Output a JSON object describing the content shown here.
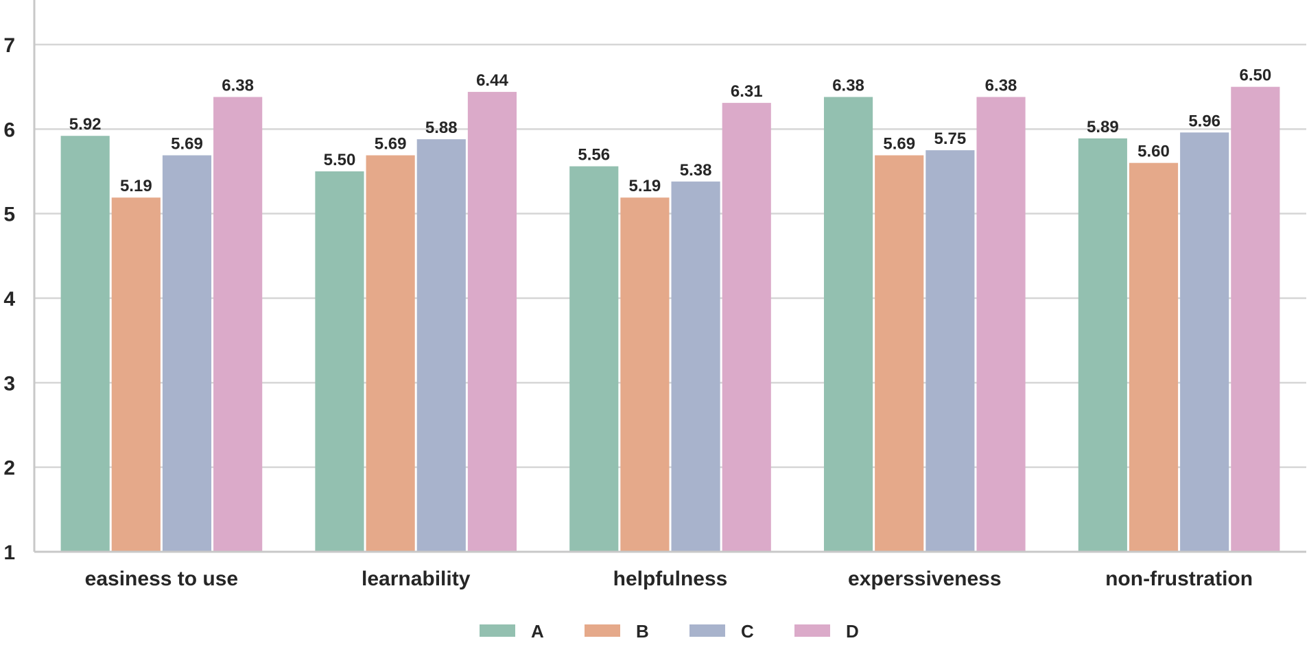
{
  "chart_data": {
    "type": "bar",
    "title": "",
    "xlabel": "",
    "ylabel": "",
    "ylim": [
      1,
      7.3
    ],
    "yticks": [
      1,
      2,
      3,
      4,
      5,
      6,
      7
    ],
    "grid": true,
    "legend_position": "bottom-center",
    "categories": [
      "easiness to use",
      "learnability",
      "helpfulness",
      "experssiveness",
      "non-frustration"
    ],
    "series": [
      {
        "name": "A",
        "color": "#93c0b0",
        "values": [
          5.92,
          5.5,
          5.56,
          6.38,
          5.89
        ],
        "labels": [
          "5.92",
          "5.50",
          "5.56",
          "6.38",
          "5.89"
        ]
      },
      {
        "name": "B",
        "color": "#e5a98a",
        "values": [
          5.19,
          5.69,
          5.19,
          5.69,
          5.6
        ],
        "labels": [
          "5.19",
          "5.69",
          "5.19",
          "5.69",
          "5.60"
        ]
      },
      {
        "name": "C",
        "color": "#a8b3cc",
        "values": [
          5.69,
          5.88,
          5.38,
          5.75,
          5.96
        ],
        "labels": [
          "5.69",
          "5.88",
          "5.38",
          "5.75",
          "5.96"
        ]
      },
      {
        "name": "D",
        "color": "#dbaac9",
        "values": [
          6.38,
          6.44,
          6.31,
          6.38,
          6.5
        ],
        "labels": [
          "6.38",
          "6.44",
          "6.31",
          "6.38",
          "6.50"
        ]
      }
    ]
  }
}
